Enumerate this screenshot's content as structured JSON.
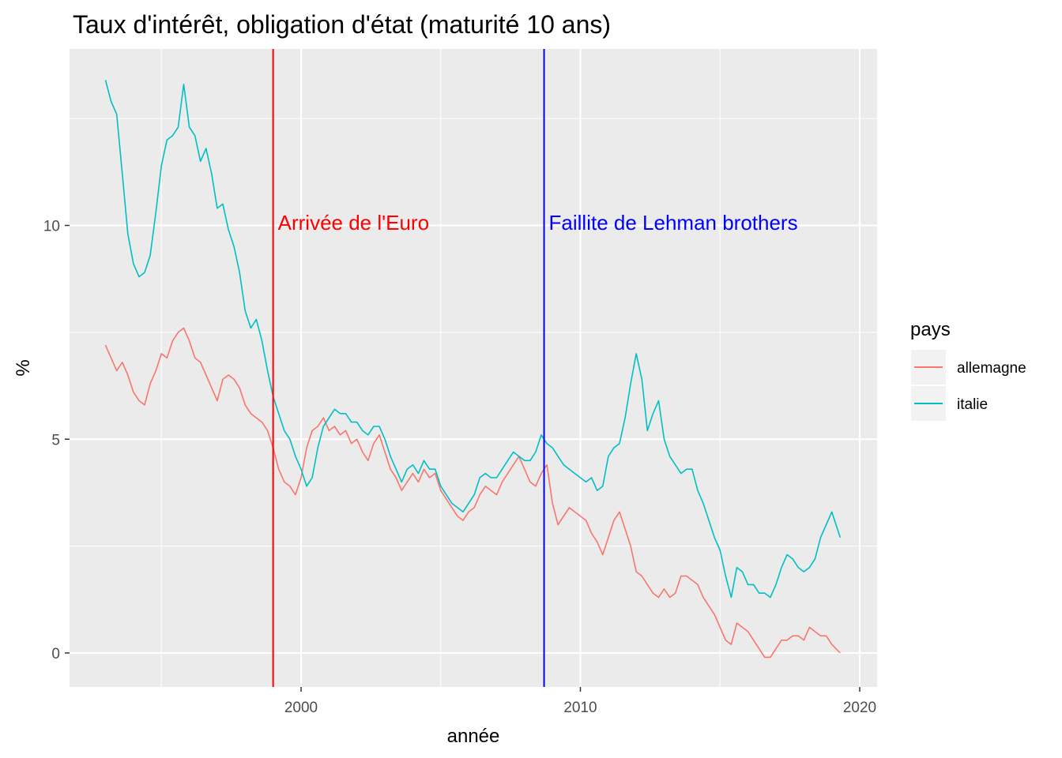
{
  "chart_data": {
    "type": "line",
    "title": "Taux d'intérêt, obligation d'état (maturité 10 ans)",
    "xlabel": "année",
    "ylabel": "%",
    "xlim": [
      1993.0,
      2019.3
    ],
    "ylim": [
      -0.8,
      14.1
    ],
    "x_ticks": [
      2000,
      2010,
      2020
    ],
    "y_ticks": [
      0,
      5,
      10
    ],
    "grid": true,
    "legend": {
      "title": "pays",
      "position": "right"
    },
    "vlines": [
      {
        "x": 1999.0,
        "label": "Arrivée de l'Euro",
        "label_y": 9.9,
        "color": "#ff0000"
      },
      {
        "x": 2008.7,
        "label": "Faillite de Lehman brothers",
        "label_y": 9.9,
        "color": "#0000ff"
      }
    ],
    "series": [
      {
        "name": "allemagne",
        "color": "#f8766d",
        "points": [
          [
            1993.0,
            7.2
          ],
          [
            1993.2,
            6.9
          ],
          [
            1993.4,
            6.6
          ],
          [
            1993.6,
            6.8
          ],
          [
            1993.8,
            6.5
          ],
          [
            1994.0,
            6.1
          ],
          [
            1994.2,
            5.9
          ],
          [
            1994.4,
            5.8
          ],
          [
            1994.6,
            6.3
          ],
          [
            1994.8,
            6.6
          ],
          [
            1995.0,
            7.0
          ],
          [
            1995.2,
            6.9
          ],
          [
            1995.4,
            7.3
          ],
          [
            1995.6,
            7.5
          ],
          [
            1995.8,
            7.6
          ],
          [
            1996.0,
            7.3
          ],
          [
            1996.2,
            6.9
          ],
          [
            1996.4,
            6.8
          ],
          [
            1996.6,
            6.5
          ],
          [
            1996.8,
            6.2
          ],
          [
            1997.0,
            5.9
          ],
          [
            1997.2,
            6.4
          ],
          [
            1997.4,
            6.5
          ],
          [
            1997.6,
            6.4
          ],
          [
            1997.8,
            6.2
          ],
          [
            1998.0,
            5.8
          ],
          [
            1998.2,
            5.6
          ],
          [
            1998.4,
            5.5
          ],
          [
            1998.6,
            5.4
          ],
          [
            1998.8,
            5.2
          ],
          [
            1999.0,
            4.8
          ],
          [
            1999.2,
            4.3
          ],
          [
            1999.4,
            4.0
          ],
          [
            1999.6,
            3.9
          ],
          [
            1999.8,
            3.7
          ],
          [
            2000.0,
            4.1
          ],
          [
            2000.2,
            4.8
          ],
          [
            2000.4,
            5.2
          ],
          [
            2000.6,
            5.3
          ],
          [
            2000.8,
            5.5
          ],
          [
            2001.0,
            5.2
          ],
          [
            2001.2,
            5.3
          ],
          [
            2001.4,
            5.1
          ],
          [
            2001.6,
            5.2
          ],
          [
            2001.8,
            4.9
          ],
          [
            2002.0,
            5.0
          ],
          [
            2002.2,
            4.7
          ],
          [
            2002.4,
            4.5
          ],
          [
            2002.6,
            4.9
          ],
          [
            2002.8,
            5.1
          ],
          [
            2003.0,
            4.7
          ],
          [
            2003.2,
            4.3
          ],
          [
            2003.4,
            4.1
          ],
          [
            2003.6,
            3.8
          ],
          [
            2003.8,
            4.0
          ],
          [
            2004.0,
            4.2
          ],
          [
            2004.2,
            4.0
          ],
          [
            2004.4,
            4.3
          ],
          [
            2004.6,
            4.1
          ],
          [
            2004.8,
            4.2
          ],
          [
            2005.0,
            3.8
          ],
          [
            2005.2,
            3.6
          ],
          [
            2005.4,
            3.4
          ],
          [
            2005.6,
            3.2
          ],
          [
            2005.8,
            3.1
          ],
          [
            2006.0,
            3.3
          ],
          [
            2006.2,
            3.4
          ],
          [
            2006.4,
            3.7
          ],
          [
            2006.6,
            3.9
          ],
          [
            2006.8,
            3.8
          ],
          [
            2007.0,
            3.7
          ],
          [
            2007.2,
            4.0
          ],
          [
            2007.4,
            4.2
          ],
          [
            2007.6,
            4.4
          ],
          [
            2007.8,
            4.6
          ],
          [
            2008.0,
            4.3
          ],
          [
            2008.2,
            4.0
          ],
          [
            2008.4,
            3.9
          ],
          [
            2008.6,
            4.2
          ],
          [
            2008.8,
            4.4
          ],
          [
            2009.0,
            3.5
          ],
          [
            2009.2,
            3.0
          ],
          [
            2009.4,
            3.2
          ],
          [
            2009.6,
            3.4
          ],
          [
            2009.8,
            3.3
          ],
          [
            2010.0,
            3.2
          ],
          [
            2010.2,
            3.1
          ],
          [
            2010.4,
            2.8
          ],
          [
            2010.6,
            2.6
          ],
          [
            2010.8,
            2.3
          ],
          [
            2011.0,
            2.7
          ],
          [
            2011.2,
            3.1
          ],
          [
            2011.4,
            3.3
          ],
          [
            2011.6,
            2.9
          ],
          [
            2011.8,
            2.5
          ],
          [
            2012.0,
            1.9
          ],
          [
            2012.2,
            1.8
          ],
          [
            2012.4,
            1.6
          ],
          [
            2012.6,
            1.4
          ],
          [
            2012.8,
            1.3
          ],
          [
            2013.0,
            1.5
          ],
          [
            2013.2,
            1.3
          ],
          [
            2013.4,
            1.4
          ],
          [
            2013.6,
            1.8
          ],
          [
            2013.8,
            1.8
          ],
          [
            2014.0,
            1.7
          ],
          [
            2014.2,
            1.6
          ],
          [
            2014.4,
            1.3
          ],
          [
            2014.6,
            1.1
          ],
          [
            2014.8,
            0.9
          ],
          [
            2015.0,
            0.6
          ],
          [
            2015.2,
            0.3
          ],
          [
            2015.4,
            0.2
          ],
          [
            2015.6,
            0.7
          ],
          [
            2015.8,
            0.6
          ],
          [
            2016.0,
            0.5
          ],
          [
            2016.2,
            0.3
          ],
          [
            2016.4,
            0.1
          ],
          [
            2016.6,
            -0.1
          ],
          [
            2016.8,
            -0.1
          ],
          [
            2017.0,
            0.1
          ],
          [
            2017.2,
            0.3
          ],
          [
            2017.4,
            0.3
          ],
          [
            2017.6,
            0.4
          ],
          [
            2017.8,
            0.4
          ],
          [
            2018.0,
            0.3
          ],
          [
            2018.2,
            0.6
          ],
          [
            2018.4,
            0.5
          ],
          [
            2018.6,
            0.4
          ],
          [
            2018.8,
            0.4
          ],
          [
            2019.0,
            0.2
          ],
          [
            2019.3,
            0.0
          ]
        ]
      },
      {
        "name": "italie",
        "color": "#00bfc4",
        "points": [
          [
            1993.0,
            13.4
          ],
          [
            1993.2,
            12.9
          ],
          [
            1993.4,
            12.6
          ],
          [
            1993.6,
            11.2
          ],
          [
            1993.8,
            9.8
          ],
          [
            1994.0,
            9.1
          ],
          [
            1994.2,
            8.8
          ],
          [
            1994.4,
            8.9
          ],
          [
            1994.6,
            9.3
          ],
          [
            1994.8,
            10.3
          ],
          [
            1995.0,
            11.4
          ],
          [
            1995.2,
            12.0
          ],
          [
            1995.4,
            12.1
          ],
          [
            1995.6,
            12.3
          ],
          [
            1995.8,
            13.3
          ],
          [
            1996.0,
            12.3
          ],
          [
            1996.2,
            12.1
          ],
          [
            1996.4,
            11.5
          ],
          [
            1996.6,
            11.8
          ],
          [
            1996.8,
            11.2
          ],
          [
            1997.0,
            10.4
          ],
          [
            1997.2,
            10.5
          ],
          [
            1997.4,
            9.9
          ],
          [
            1997.6,
            9.5
          ],
          [
            1997.8,
            8.9
          ],
          [
            1998.0,
            8.0
          ],
          [
            1998.2,
            7.6
          ],
          [
            1998.4,
            7.8
          ],
          [
            1998.6,
            7.3
          ],
          [
            1998.8,
            6.6
          ],
          [
            1999.0,
            6.0
          ],
          [
            1999.2,
            5.6
          ],
          [
            1999.4,
            5.2
          ],
          [
            1999.6,
            5.0
          ],
          [
            1999.8,
            4.6
          ],
          [
            2000.0,
            4.3
          ],
          [
            2000.2,
            3.9
          ],
          [
            2000.4,
            4.1
          ],
          [
            2000.6,
            4.8
          ],
          [
            2000.8,
            5.3
          ],
          [
            2001.0,
            5.5
          ],
          [
            2001.2,
            5.7
          ],
          [
            2001.4,
            5.6
          ],
          [
            2001.6,
            5.6
          ],
          [
            2001.8,
            5.4
          ],
          [
            2002.0,
            5.4
          ],
          [
            2002.2,
            5.2
          ],
          [
            2002.4,
            5.1
          ],
          [
            2002.6,
            5.3
          ],
          [
            2002.8,
            5.3
          ],
          [
            2003.0,
            5.0
          ],
          [
            2003.2,
            4.6
          ],
          [
            2003.4,
            4.3
          ],
          [
            2003.6,
            4.0
          ],
          [
            2003.8,
            4.3
          ],
          [
            2004.0,
            4.4
          ],
          [
            2004.2,
            4.2
          ],
          [
            2004.4,
            4.5
          ],
          [
            2004.6,
            4.3
          ],
          [
            2004.8,
            4.3
          ],
          [
            2005.0,
            3.9
          ],
          [
            2005.2,
            3.7
          ],
          [
            2005.4,
            3.5
          ],
          [
            2005.6,
            3.4
          ],
          [
            2005.8,
            3.3
          ],
          [
            2006.0,
            3.5
          ],
          [
            2006.2,
            3.7
          ],
          [
            2006.4,
            4.1
          ],
          [
            2006.6,
            4.2
          ],
          [
            2006.8,
            4.1
          ],
          [
            2007.0,
            4.1
          ],
          [
            2007.2,
            4.3
          ],
          [
            2007.4,
            4.5
          ],
          [
            2007.6,
            4.7
          ],
          [
            2007.8,
            4.6
          ],
          [
            2008.0,
            4.5
          ],
          [
            2008.2,
            4.5
          ],
          [
            2008.4,
            4.7
          ],
          [
            2008.6,
            5.1
          ],
          [
            2008.8,
            4.9
          ],
          [
            2009.0,
            4.8
          ],
          [
            2009.2,
            4.6
          ],
          [
            2009.4,
            4.4
          ],
          [
            2009.6,
            4.3
          ],
          [
            2009.8,
            4.2
          ],
          [
            2010.0,
            4.1
          ],
          [
            2010.2,
            4.0
          ],
          [
            2010.4,
            4.1
          ],
          [
            2010.6,
            3.8
          ],
          [
            2010.8,
            3.9
          ],
          [
            2011.0,
            4.6
          ],
          [
            2011.2,
            4.8
          ],
          [
            2011.4,
            4.9
          ],
          [
            2011.6,
            5.5
          ],
          [
            2011.8,
            6.3
          ],
          [
            2012.0,
            7.0
          ],
          [
            2012.2,
            6.4
          ],
          [
            2012.4,
            5.2
          ],
          [
            2012.6,
            5.6
          ],
          [
            2012.8,
            5.9
          ],
          [
            2013.0,
            5.0
          ],
          [
            2013.2,
            4.6
          ],
          [
            2013.4,
            4.4
          ],
          [
            2013.6,
            4.2
          ],
          [
            2013.8,
            4.3
          ],
          [
            2014.0,
            4.3
          ],
          [
            2014.2,
            3.8
          ],
          [
            2014.4,
            3.5
          ],
          [
            2014.6,
            3.1
          ],
          [
            2014.8,
            2.7
          ],
          [
            2015.0,
            2.4
          ],
          [
            2015.2,
            1.8
          ],
          [
            2015.4,
            1.3
          ],
          [
            2015.6,
            2.0
          ],
          [
            2015.8,
            1.9
          ],
          [
            2016.0,
            1.6
          ],
          [
            2016.2,
            1.6
          ],
          [
            2016.4,
            1.4
          ],
          [
            2016.6,
            1.4
          ],
          [
            2016.8,
            1.3
          ],
          [
            2017.0,
            1.6
          ],
          [
            2017.2,
            2.0
          ],
          [
            2017.4,
            2.3
          ],
          [
            2017.6,
            2.2
          ],
          [
            2017.8,
            2.0
          ],
          [
            2018.0,
            1.9
          ],
          [
            2018.2,
            2.0
          ],
          [
            2018.4,
            2.2
          ],
          [
            2018.6,
            2.7
          ],
          [
            2018.8,
            3.0
          ],
          [
            2019.0,
            3.3
          ],
          [
            2019.3,
            2.7
          ]
        ]
      }
    ]
  }
}
